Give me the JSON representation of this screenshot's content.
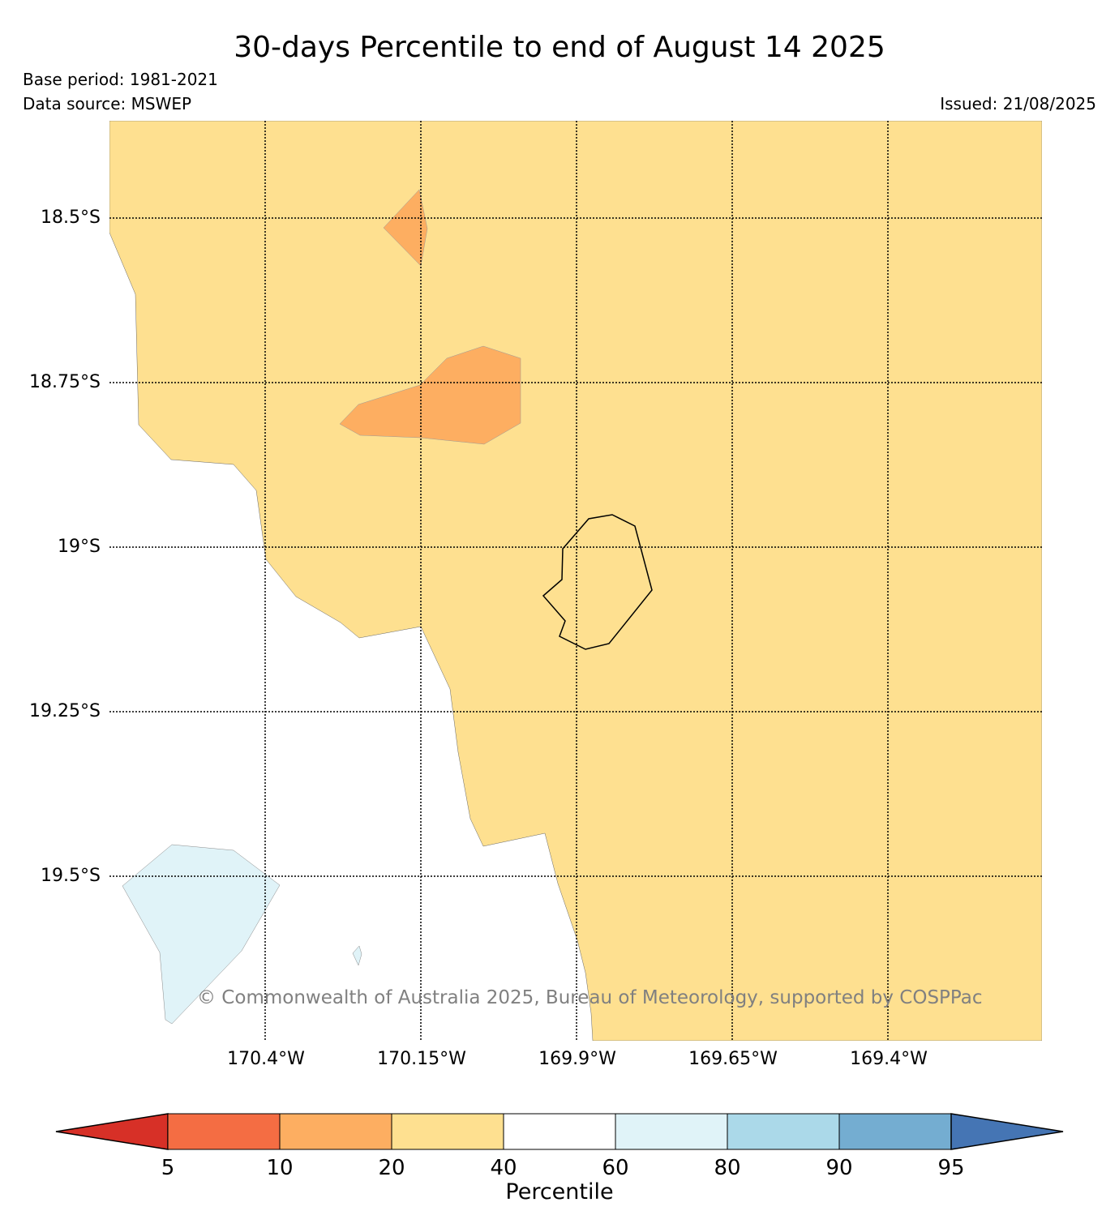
{
  "header": {
    "title": "30-days Percentile to end of August 14 2025",
    "base_period": "Base period: 1981-2021",
    "data_source": "Data source: MSWEP",
    "issued": "Issued: 21/08/2025"
  },
  "map": {
    "latitude_labels": [
      "18.5°S",
      "18.75°S",
      "19°S",
      "19.25°S",
      "19.5°S"
    ],
    "longitude_labels": [
      "170.4°W",
      "170.15°W",
      "169.9°W",
      "169.65°W",
      "169.4°W"
    ],
    "copyright": "© Commonwealth of Australia 2025, Bureau of Meteorology, supported by COSPPac",
    "regions": [
      {
        "name": "percentile-20-40",
        "color": "#fee090"
      },
      {
        "name": "percentile-10-20",
        "color": "#fdae61"
      },
      {
        "name": "percentile-60-80",
        "color": "#e0f3f8"
      }
    ]
  },
  "colorbar": {
    "title": "Percentile",
    "ticks": [
      "5",
      "10",
      "20",
      "40",
      "60",
      "80",
      "90",
      "95"
    ],
    "colors": [
      "#d73027",
      "#f46d43",
      "#fdae61",
      "#fee090",
      "#ffffff",
      "#e0f3f8",
      "#abd9e9",
      "#74add1",
      "#4575b4"
    ]
  }
}
